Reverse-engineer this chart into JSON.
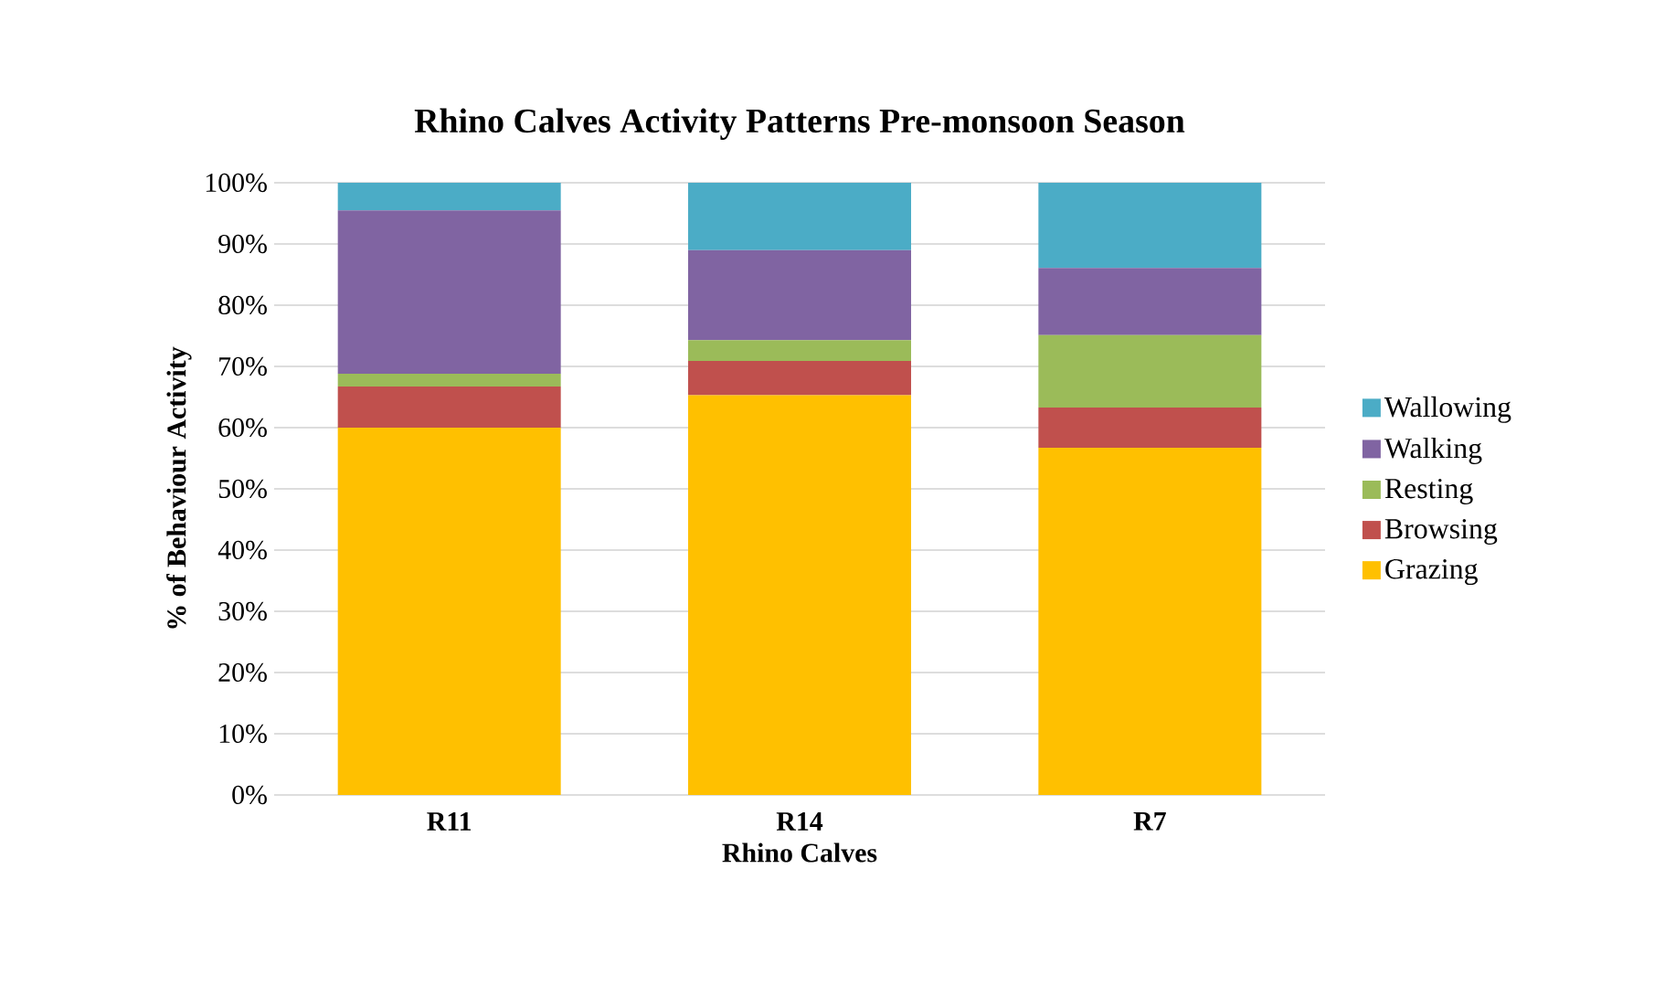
{
  "chart_data": {
    "type": "bar",
    "stacked": true,
    "title": "Rhino Calves Activity Patterns Pre-monsoon Season",
    "xlabel": "Rhino Calves",
    "ylabel": "% of Behaviour Activity",
    "categories": [
      "R11",
      "R14",
      "R7"
    ],
    "series": [
      {
        "name": "Grazing",
        "color": "#ffc000",
        "values": [
          60,
          65.3,
          56.7
        ]
      },
      {
        "name": "Browsing",
        "color": "#c0504d",
        "values": [
          6.7,
          5.6,
          6.6
        ]
      },
      {
        "name": "Resting",
        "color": "#9bbb59",
        "values": [
          2.1,
          3.4,
          11.8
        ]
      },
      {
        "name": "Walking",
        "color": "#8064a2",
        "values": [
          26.7,
          14.7,
          11.0
        ]
      },
      {
        "name": "Wallowing",
        "color": "#4bacc6",
        "values": [
          4.5,
          11.0,
          13.9
        ]
      }
    ],
    "ylim": [
      0,
      100
    ],
    "yticks": [
      {
        "value": 0,
        "label": "0%"
      },
      {
        "value": 10,
        "label": "10%"
      },
      {
        "value": 20,
        "label": "20%"
      },
      {
        "value": 30,
        "label": "30%"
      },
      {
        "value": 40,
        "label": "40%"
      },
      {
        "value": 50,
        "label": "50%"
      },
      {
        "value": 60,
        "label": "60%"
      },
      {
        "value": 70,
        "label": "70%"
      },
      {
        "value": 80,
        "label": "80%"
      },
      {
        "value": 90,
        "label": "90%"
      },
      {
        "value": 100,
        "label": "100%"
      }
    ],
    "grid": "y",
    "legend": "right"
  }
}
